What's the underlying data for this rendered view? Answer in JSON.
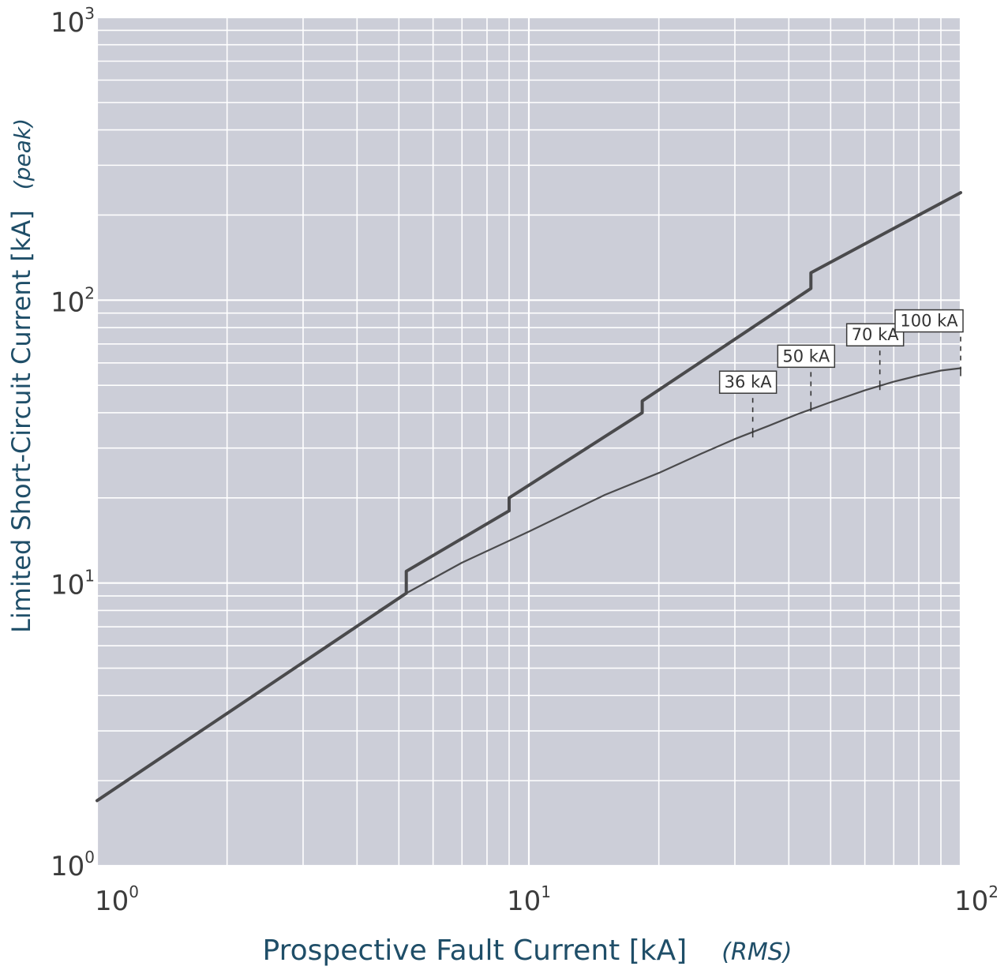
{
  "chart_data": {
    "type": "line",
    "xscale": "log",
    "yscale": "log",
    "xlim": [
      1,
      100
    ],
    "ylim": [
      1,
      1000
    ],
    "grid": true,
    "xlabel": "Prospective Fault Current [kA]",
    "xlabel_unit": "(RMS)",
    "ylabel": "Limited Short-Circuit Current [kA]",
    "ylabel_unit": "(peak)",
    "x_ticks": [
      {
        "base": "10",
        "exp": "0",
        "value": 1
      },
      {
        "base": "10",
        "exp": "1",
        "value": 10
      },
      {
        "base": "10",
        "exp": "2",
        "value": 100
      }
    ],
    "y_ticks": [
      {
        "base": "10",
        "exp": "0",
        "value": 1
      },
      {
        "base": "10",
        "exp": "1",
        "value": 10
      },
      {
        "base": "10",
        "exp": "2",
        "value": 100
      },
      {
        "base": "10",
        "exp": "3",
        "value": 1000
      }
    ],
    "series": [
      {
        "name": "",
        "style": "thick",
        "points": [
          [
            1,
            1.7
          ],
          [
            5.2,
            9.2
          ],
          [
            5.2,
            11.0
          ],
          [
            9.0,
            18.0
          ],
          [
            9.0,
            20.0
          ],
          [
            18.3,
            40.0
          ],
          [
            18.3,
            44.0
          ],
          [
            45.0,
            110.0
          ],
          [
            45.0,
            125.0
          ],
          [
            100,
            240
          ]
        ]
      },
      {
        "name": "",
        "style": "thin",
        "points": [
          [
            4.5,
            8.0
          ],
          [
            5.2,
            9.2
          ],
          [
            7.0,
            11.8
          ],
          [
            10,
            15.2
          ],
          [
            15,
            20.5
          ],
          [
            20,
            24.5
          ],
          [
            25,
            28.6
          ],
          [
            30,
            32.3
          ],
          [
            36,
            36.0
          ],
          [
            42,
            39.6
          ],
          [
            50,
            43.6
          ],
          [
            60,
            48.0
          ],
          [
            70,
            51.5
          ],
          [
            80,
            54.2
          ],
          [
            90,
            56.4
          ],
          [
            100,
            57.5
          ]
        ]
      }
    ],
    "annotations": [
      {
        "label": "36 kA",
        "x": 33,
        "y": 34
      },
      {
        "label": "50 kA",
        "x": 45,
        "y": 42
      },
      {
        "label": "70 kA",
        "x": 65,
        "y": 50
      },
      {
        "label": "100 kA",
        "x": 100,
        "y": 56
      }
    ],
    "colors": {
      "plot_background": "#ccced8",
      "grid": "#ffffff",
      "line": "#4a4a4c",
      "axis_title": "#1f4e68",
      "tick_label": "#3b3b3b"
    }
  }
}
